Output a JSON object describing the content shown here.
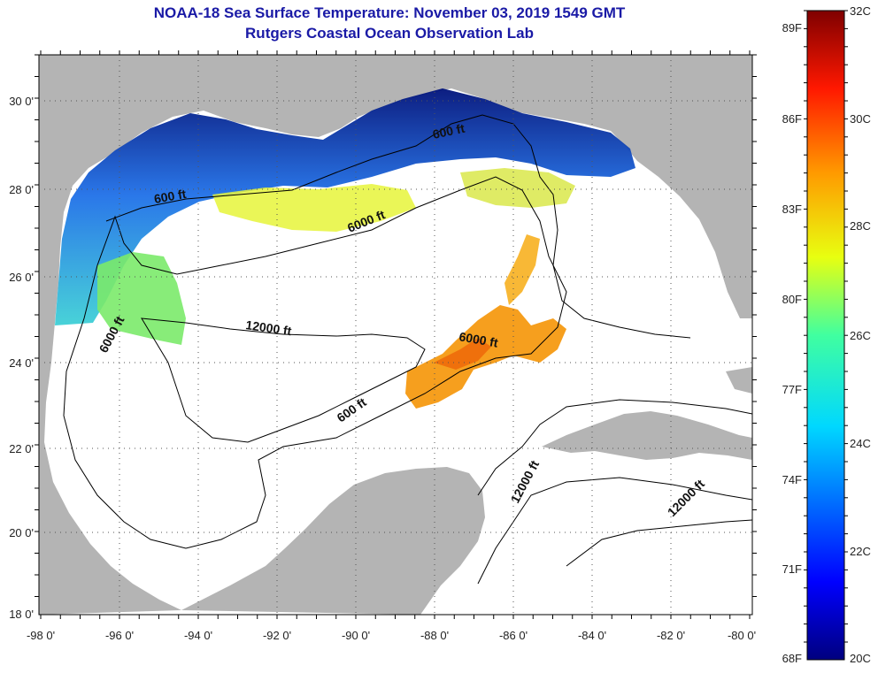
{
  "title": "NOAA-18 Sea Surface Temperature:  November 03, 2019 1549 GMT",
  "subtitle": "Rutgers Coastal Ocean Observation Lab",
  "map": {
    "lat_ticks": [
      "30 0'",
      "28 0'",
      "26 0'",
      "24 0'",
      "22 0'",
      "20 0'",
      "18 0'"
    ],
    "lon_ticks": [
      "-98 0'",
      "-96 0'",
      "-94 0'",
      "-92 0'",
      "-90 0'",
      "-88 0'",
      "-86 0'",
      "-84 0'",
      "-82 0'",
      "-80 0'"
    ],
    "contour_labels": [
      "600 ft",
      "600 ft",
      "6000 ft",
      "12000 ft",
      "6000 ft",
      "6000 ft",
      "600 ft",
      "12000 ft",
      "12000 ft"
    ]
  },
  "colorbar": {
    "fahrenheit": [
      "89F",
      "86F",
      "83F",
      "80F",
      "77F",
      "74F",
      "71F",
      "68F"
    ],
    "celsius": [
      "32C",
      "30C",
      "28C",
      "26C",
      "24C",
      "22C",
      "20C"
    ]
  },
  "colors": {
    "title": "#1a1aa6",
    "land": "#b4b4b4",
    "water": "#ffffff"
  }
}
